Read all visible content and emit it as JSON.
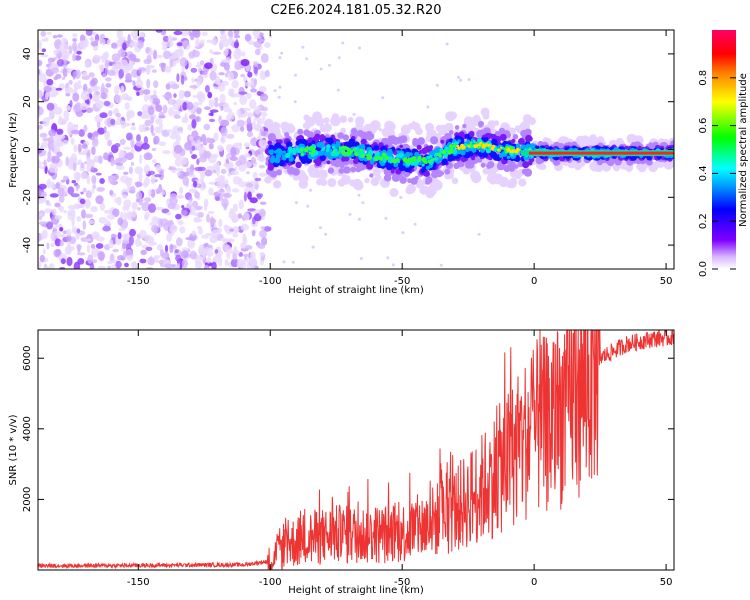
{
  "title": "C2E6.2024.181.05.32.R20",
  "chart_data": [
    {
      "type": "heatmap",
      "name": "spectrogram",
      "xlabel": "Height of straight line (km)",
      "ylabel": "Frequency (Hz)",
      "xlim": [
        -188,
        53
      ],
      "ylim": [
        -50,
        50
      ],
      "xticks": [
        -150,
        -100,
        -50,
        0,
        50
      ],
      "yticks": [
        -40,
        -20,
        0,
        20,
        40
      ],
      "ridge": [
        {
          "x": -100,
          "f": -2.5
        },
        {
          "x": -90,
          "f": -1
        },
        {
          "x": -80,
          "f": 0
        },
        {
          "x": -70,
          "f": -0.5
        },
        {
          "x": -60,
          "f": -3
        },
        {
          "x": -50,
          "f": -4
        },
        {
          "x": -40,
          "f": -5
        },
        {
          "x": -30,
          "f": 1
        },
        {
          "x": -20,
          "f": 2
        },
        {
          "x": -10,
          "f": -0.5
        },
        {
          "x": 0,
          "f": -1
        },
        {
          "x": 10,
          "f": -1.5
        },
        {
          "x": 20,
          "f": -1.5
        },
        {
          "x": 30,
          "f": -1.5
        },
        {
          "x": 40,
          "f": -1.5
        },
        {
          "x": 53,
          "f": -1.5
        }
      ],
      "noise_region_x": [
        -188,
        -101
      ],
      "colorbar": {
        "label": "Normalized spectral amplitude",
        "ticks": [
          "0.0",
          "0.2",
          "0.4",
          "0.6",
          "0.8"
        ],
        "range": [
          0,
          1
        ]
      }
    },
    {
      "type": "line",
      "name": "snr",
      "xlabel": "Height of straight line (km)",
      "ylabel": "SNR (10 * v/v)",
      "xlim": [
        -188,
        53
      ],
      "ylim": [
        0,
        6800
      ],
      "xticks": [
        -150,
        -100,
        -50,
        0,
        50
      ],
      "yticks": [
        2000,
        4000,
        6000
      ],
      "color": "#ee3333",
      "trend": [
        {
          "x": -188,
          "y": 120
        },
        {
          "x": -150,
          "y": 130
        },
        {
          "x": -110,
          "y": 150
        },
        {
          "x": -100,
          "y": 250
        },
        {
          "x": -95,
          "y": 700
        },
        {
          "x": -85,
          "y": 900
        },
        {
          "x": -75,
          "y": 1000
        },
        {
          "x": -60,
          "y": 1000
        },
        {
          "x": -50,
          "y": 1050
        },
        {
          "x": -40,
          "y": 1300
        },
        {
          "x": -30,
          "y": 1700
        },
        {
          "x": -20,
          "y": 2300
        },
        {
          "x": -10,
          "y": 3100
        },
        {
          "x": 0,
          "y": 4000
        },
        {
          "x": 8,
          "y": 4200
        },
        {
          "x": 15,
          "y": 5000
        },
        {
          "x": 25,
          "y": 6000
        },
        {
          "x": 35,
          "y": 6400
        },
        {
          "x": 45,
          "y": 6550
        },
        {
          "x": 53,
          "y": 6600
        }
      ]
    }
  ]
}
